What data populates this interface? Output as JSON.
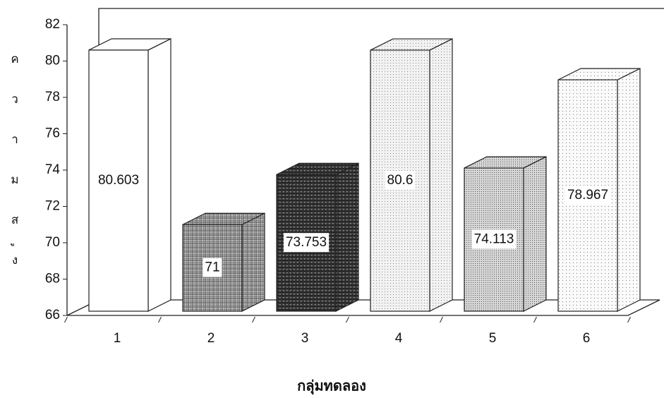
{
  "chart_data": {
    "type": "bar3d",
    "y_label": "ความสูง",
    "x_label": "กลุ่มทดลอง",
    "categories": [
      "1",
      "2",
      "3",
      "4",
      "5",
      "6"
    ],
    "values": [
      80.603,
      71,
      73.753,
      80.6,
      74.113,
      78.967
    ],
    "colors": [
      "url(#p-white)",
      "url(#p-grid)",
      "url(#p-dark)",
      "url(#p-light)",
      "url(#p-mid)",
      "url(#p-fine)"
    ],
    "ylim": [
      66,
      82
    ],
    "yticks": [
      66,
      68,
      70,
      72,
      74,
      76,
      78,
      80,
      82
    ],
    "grid": false
  }
}
